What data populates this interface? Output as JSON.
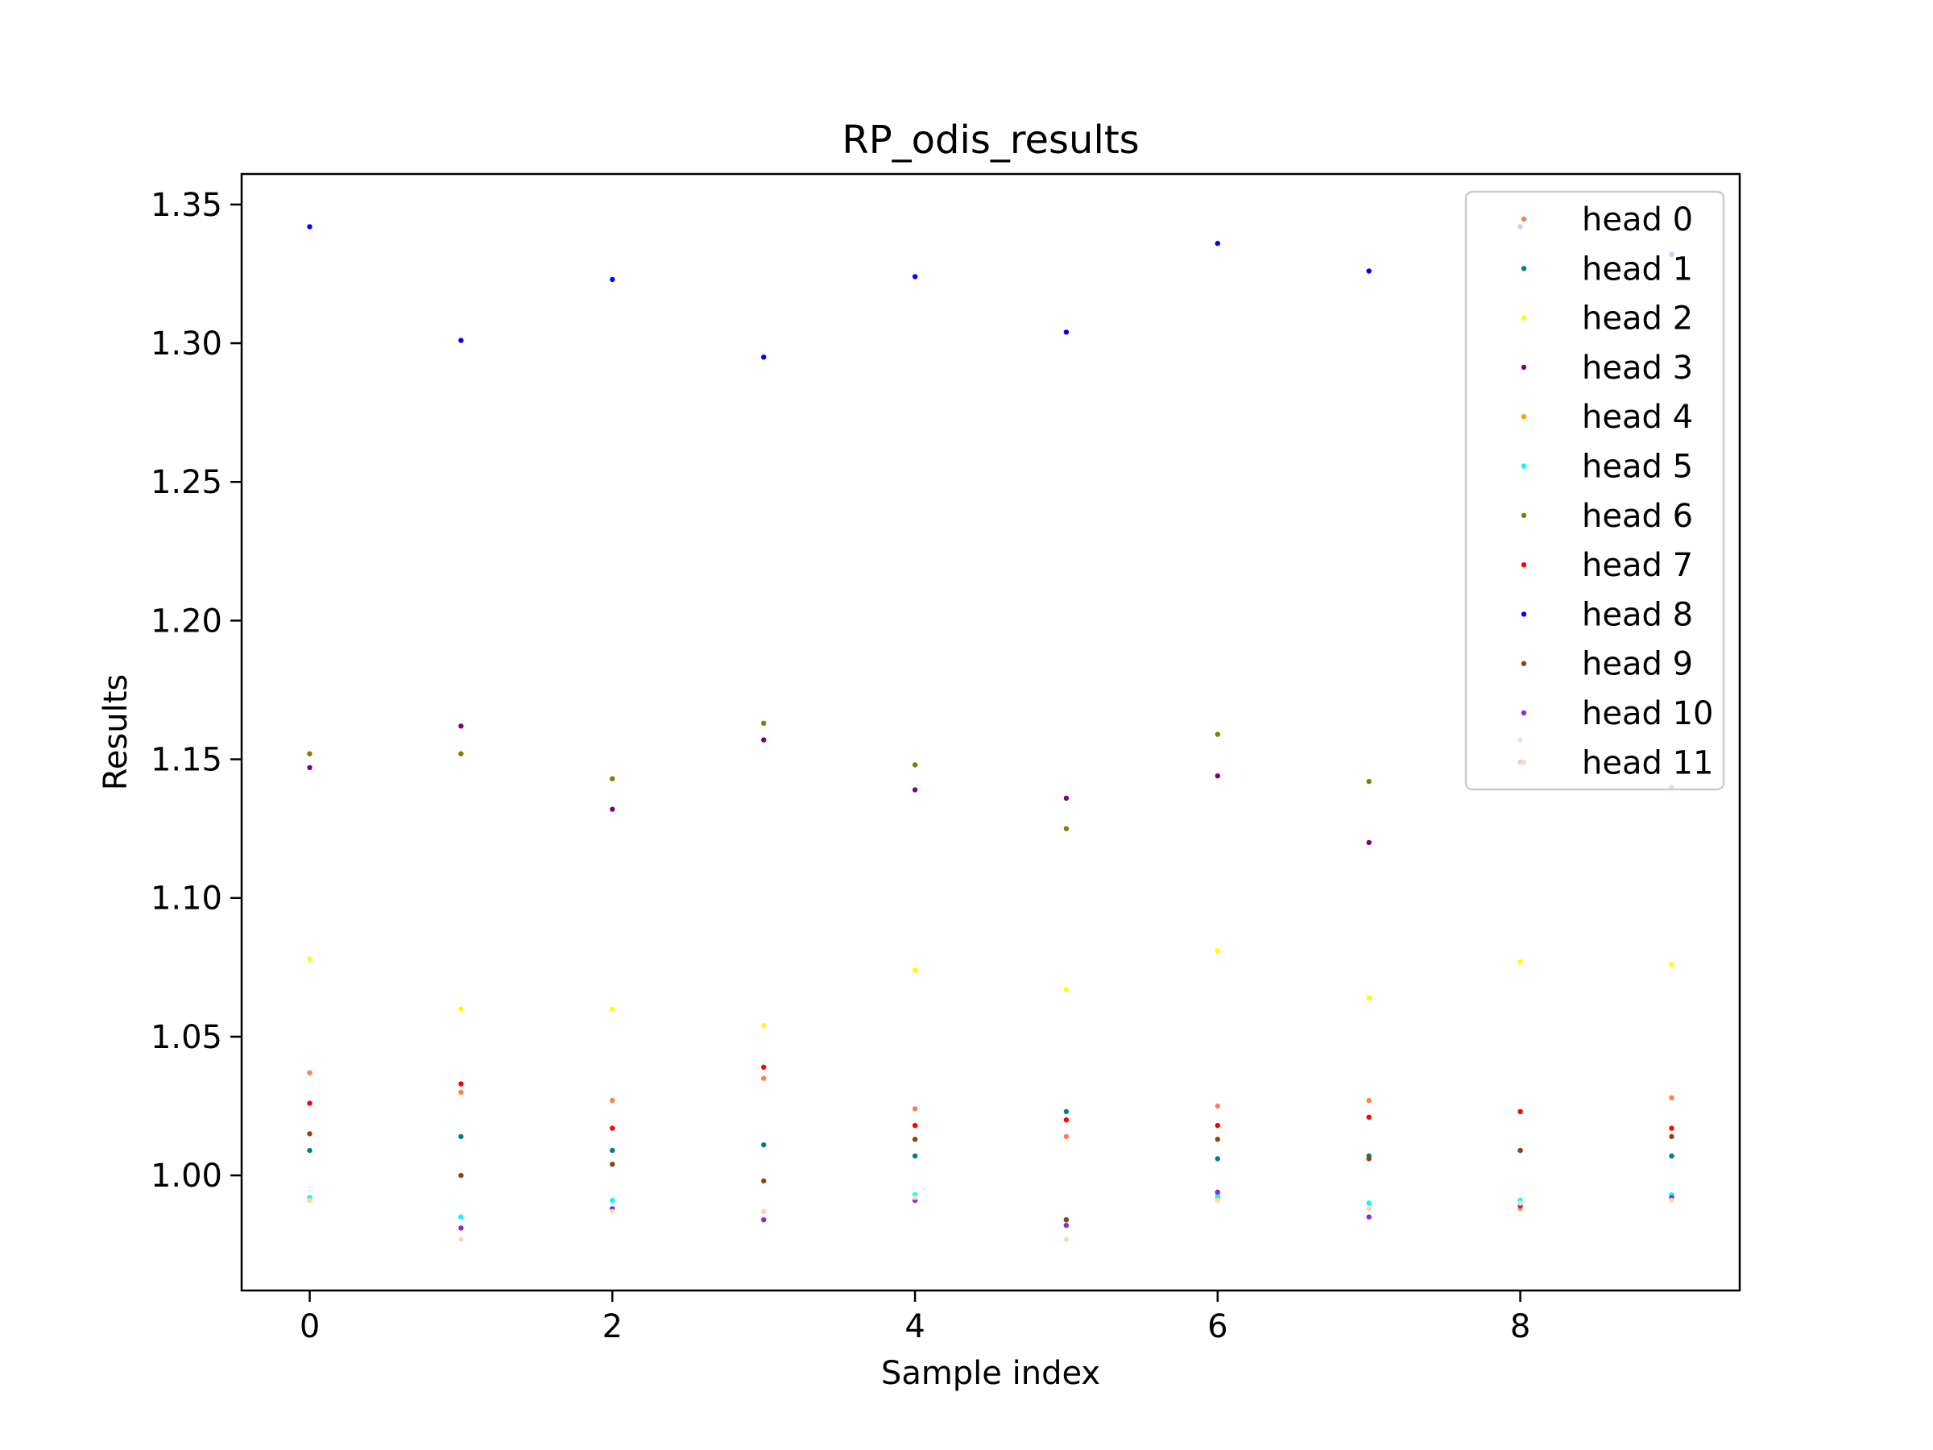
{
  "chart_data": {
    "type": "scatter",
    "title": "RP_odis_results",
    "xlabel": "Sample index",
    "ylabel": "Results",
    "xlim": [
      -0.45,
      9.45
    ],
    "ylim": [
      0.9585,
      1.361
    ],
    "xticks": [
      0,
      2,
      4,
      6,
      8
    ],
    "yticks": [
      1.0,
      1.05,
      1.1,
      1.15,
      1.2,
      1.25,
      1.3,
      1.35
    ],
    "ytick_labels": [
      "1.00",
      "1.05",
      "1.10",
      "1.15",
      "1.20",
      "1.25",
      "1.30",
      "1.35"
    ],
    "grid": false,
    "legend": "top-right",
    "x": [
      0,
      1,
      2,
      3,
      4,
      5,
      6,
      7,
      8,
      9
    ],
    "series": [
      {
        "name": "head 0",
        "color": "#ff7f50",
        "values": [
          1.037,
          1.03,
          1.027,
          1.035,
          1.024,
          1.014,
          1.025,
          1.027,
          1.023,
          1.028
        ]
      },
      {
        "name": "head 1",
        "color": "#008080",
        "values": [
          1.009,
          1.014,
          1.009,
          1.011,
          1.007,
          1.023,
          1.006,
          1.007,
          1.009,
          1.007
        ]
      },
      {
        "name": "head 2",
        "color": "#ffff00",
        "values": [
          1.078,
          1.06,
          1.06,
          1.054,
          1.074,
          1.067,
          1.081,
          1.064,
          1.077,
          1.076
        ]
      },
      {
        "name": "head 3",
        "color": "#800080",
        "values": [
          1.147,
          1.162,
          1.132,
          1.157,
          1.139,
          1.136,
          1.144,
          1.12,
          1.149,
          1.14
        ]
      },
      {
        "name": "head 4",
        "color": "#ffa500",
        "values": [
          0.992,
          0.981,
          0.988,
          0.987,
          0.991,
          0.982,
          0.992,
          0.988,
          0.988,
          0.992
        ]
      },
      {
        "name": "head 5",
        "color": "#00ffff",
        "values": [
          0.992,
          0.985,
          0.991,
          0.984,
          0.993,
          0.984,
          0.993,
          0.99,
          0.991,
          0.993
        ]
      },
      {
        "name": "head 6",
        "color": "#808000",
        "values": [
          1.152,
          1.152,
          1.143,
          1.163,
          1.148,
          1.125,
          1.159,
          1.142,
          1.157,
          1.14
        ]
      },
      {
        "name": "head 7",
        "color": "#ff0000",
        "values": [
          1.026,
          1.033,
          1.017,
          1.039,
          1.018,
          1.02,
          1.018,
          1.021,
          1.023,
          1.017
        ]
      },
      {
        "name": "head 8",
        "color": "#0000ff",
        "values": [
          1.342,
          1.301,
          1.323,
          1.295,
          1.324,
          1.304,
          1.336,
          1.326,
          1.342,
          1.332
        ]
      },
      {
        "name": "head 9",
        "color": "#8b4513",
        "values": [
          1.015,
          1.0,
          1.004,
          0.998,
          1.013,
          0.984,
          1.013,
          1.006,
          1.009,
          1.014
        ]
      },
      {
        "name": "head 10",
        "color": "#8a2be2",
        "values": [
          0.991,
          0.981,
          0.988,
          0.984,
          0.991,
          0.982,
          0.994,
          0.985,
          0.989,
          0.992
        ]
      },
      {
        "name": "head 11",
        "color": "#f5deb3",
        "values": [
          0.991,
          0.977,
          0.987,
          0.987,
          0.992,
          0.977,
          0.991,
          0.988,
          0.99,
          0.991
        ]
      }
    ]
  }
}
